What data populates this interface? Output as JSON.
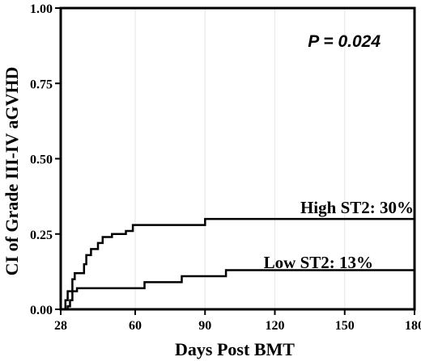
{
  "chart_data": {
    "type": "line",
    "step": true,
    "title": "",
    "xlabel": "Days Post BMT",
    "ylabel": "CI of Grade III-IV aGVHD",
    "xlim": [
      28,
      180
    ],
    "ylim": [
      0,
      1
    ],
    "xticks": [
      28,
      60,
      90,
      120,
      150,
      180
    ],
    "yticks": [
      0,
      0.25,
      0.5,
      0.75,
      1
    ],
    "xtick_labels": [
      "28",
      "60",
      "90",
      "120",
      "150",
      "180"
    ],
    "ytick_labels": [
      "0.00",
      "0.25",
      "0.50",
      "0.75",
      "1.00"
    ],
    "grid": "vertical",
    "annotation": "P = 0.024",
    "series": [
      {
        "name": "High ST2: 30%",
        "x": [
          28,
          30,
          31,
          33,
          34,
          38,
          39,
          41,
          44,
          46,
          50,
          56,
          59,
          63,
          90,
          180
        ],
        "y": [
          0,
          0.03,
          0.06,
          0.1,
          0.12,
          0.15,
          0.18,
          0.2,
          0.22,
          0.24,
          0.25,
          0.26,
          0.28,
          0.28,
          0.3,
          0.3
        ]
      },
      {
        "name": "Low ST2: 13%",
        "x": [
          28,
          31,
          32,
          33,
          35,
          64,
          80,
          99,
          180
        ],
        "y": [
          0,
          0.01,
          0.03,
          0.06,
          0.07,
          0.09,
          0.11,
          0.13,
          0.13
        ]
      }
    ]
  }
}
